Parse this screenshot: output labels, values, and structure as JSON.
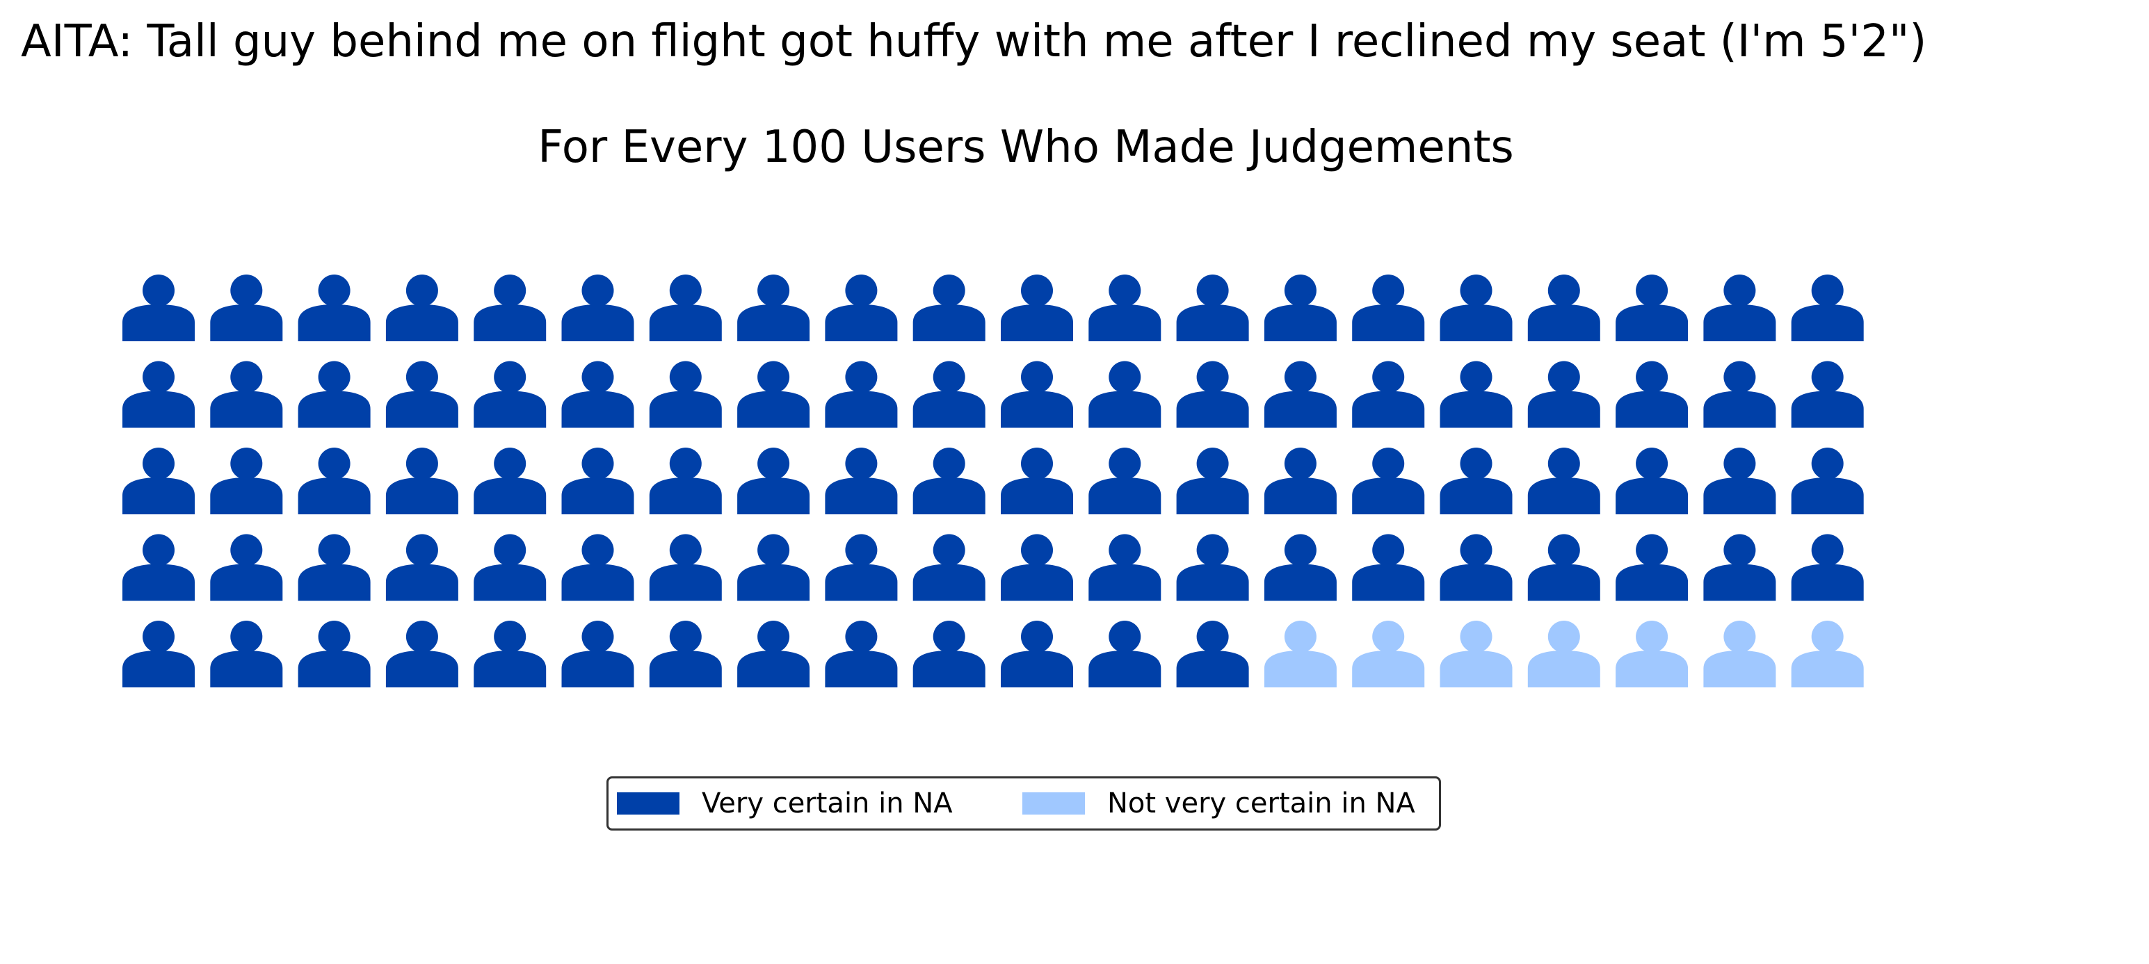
{
  "post_title": "AITA: Tall guy behind me on flight got huffy with me after I reclined my seat (I'm 5'2\")",
  "chart_data": {
    "type": "waffle",
    "title": "For Every 100 Users Who Made Judgements",
    "icon": "person-icon",
    "grid": {
      "rows": 5,
      "columns": 20
    },
    "total": 100,
    "series": [
      {
        "name": "Very certain in NA",
        "value": 93,
        "color": "#0040A8"
      },
      {
        "name": "Not very certain in NA",
        "value": 7,
        "color": "#A0C8FF"
      }
    ],
    "legend": {
      "placement": "bottom-center",
      "columns": 2
    }
  }
}
